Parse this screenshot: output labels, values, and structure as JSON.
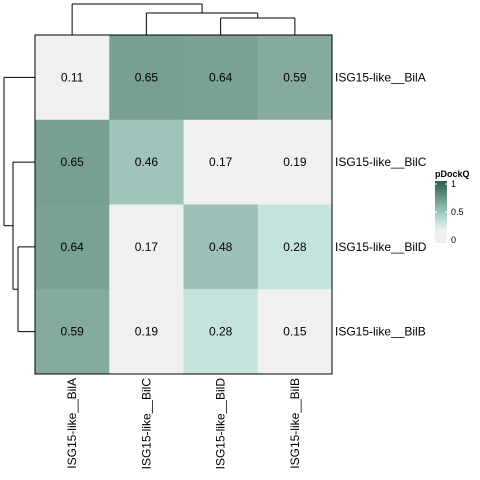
{
  "chart_data": {
    "type": "heatmap",
    "title": "",
    "xlabel": "",
    "ylabel": "",
    "rows": [
      "ISG15-like__BilA",
      "ISG15-like__BilC",
      "ISG15-like__BilD",
      "ISG15-like__BilB"
    ],
    "columns": [
      "ISG15-like__BilA",
      "ISG15-like__BilC",
      "ISG15-like__BilD",
      "ISG15-like__BilB"
    ],
    "values": [
      [
        0.11,
        0.65,
        0.64,
        0.59
      ],
      [
        0.65,
        0.46,
        0.17,
        0.19
      ],
      [
        0.64,
        0.17,
        0.48,
        0.28
      ],
      [
        0.59,
        0.19,
        0.28,
        0.15
      ]
    ],
    "value_labels": [
      [
        "0.11",
        "0.65",
        "0.64",
        "0.59"
      ],
      [
        "0.65",
        "0.46",
        "0.17",
        "0.19"
      ],
      [
        "0.64",
        "0.17",
        "0.48",
        "0.28"
      ],
      [
        "0.59",
        "0.19",
        "0.28",
        "0.15"
      ]
    ],
    "color_scale": {
      "low_color": "#f0f0f0",
      "mid_color": "#cce8e4",
      "high_color": "#2f5c4d",
      "low_threshold": 0.2,
      "range": [
        0,
        1
      ]
    },
    "legend": {
      "title": "pDockQ",
      "ticks": [
        "1",
        "0.5",
        "0"
      ],
      "tick_values": [
        1,
        0.5,
        0
      ],
      "placement": "right"
    },
    "dendrograms": {
      "rows": true,
      "columns": true
    }
  }
}
